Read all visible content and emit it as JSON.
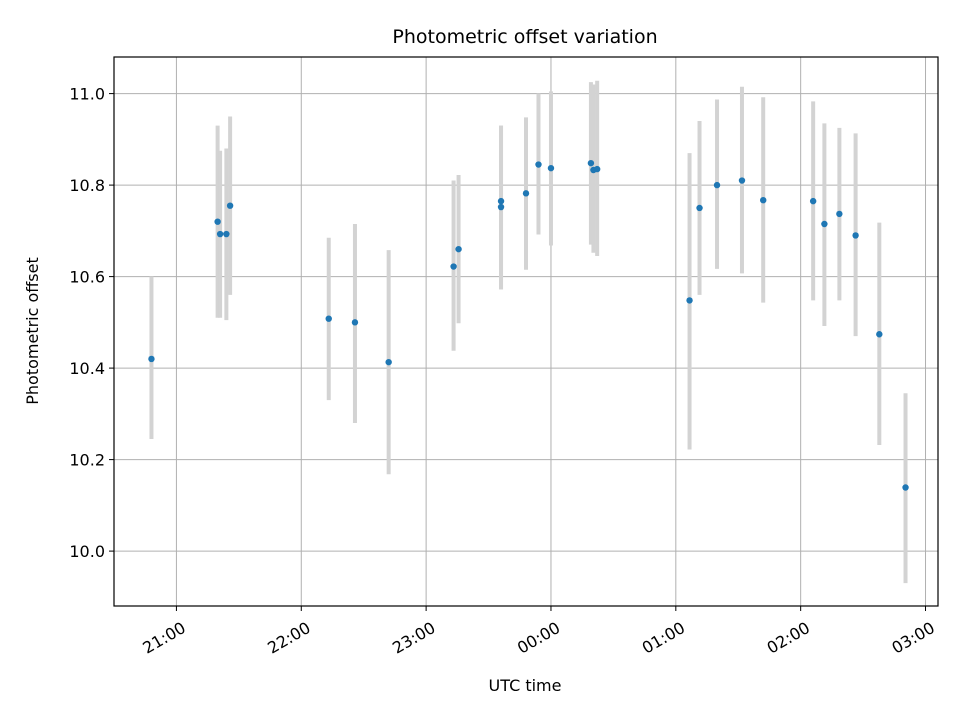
{
  "chart_data": {
    "type": "scatter",
    "title": "Photometric offset variation",
    "xlabel": "UTC time",
    "ylabel": "Photometric offset",
    "x_unit": "hours (UTC, values beyond 24 continue past midnight)",
    "xlim": [
      20.5,
      27.1
    ],
    "ylim": [
      9.88,
      11.08
    ],
    "xticks": [
      21,
      22,
      23,
      24,
      25,
      26,
      27
    ],
    "xtick_labels": [
      "21:00",
      "22:00",
      "23:00",
      "00:00",
      "01:00",
      "02:00",
      "03:00"
    ],
    "yticks": [
      10.0,
      10.2,
      10.4,
      10.6,
      10.8,
      11.0
    ],
    "ytick_labels": [
      "10.0",
      "10.2",
      "10.4",
      "10.6",
      "10.8",
      "11.0"
    ],
    "grid": true,
    "colors": {
      "points": "#1f77b4",
      "errorbars": "#d3d3d3",
      "grid": "#b0b0b0"
    },
    "points": [
      {
        "t": 20.8,
        "y": 10.42,
        "ylo": 10.245,
        "yhi": 10.6
      },
      {
        "t": 21.33,
        "y": 10.72,
        "ylo": 10.51,
        "yhi": 10.93
      },
      {
        "t": 21.35,
        "y": 10.693,
        "ylo": 10.51,
        "yhi": 10.875
      },
      {
        "t": 21.4,
        "y": 10.693,
        "ylo": 10.505,
        "yhi": 10.88
      },
      {
        "t": 21.43,
        "y": 10.755,
        "ylo": 10.56,
        "yhi": 10.95
      },
      {
        "t": 22.22,
        "y": 10.508,
        "ylo": 10.33,
        "yhi": 10.685
      },
      {
        "t": 22.43,
        "y": 10.5,
        "ylo": 10.28,
        "yhi": 10.715
      },
      {
        "t": 22.7,
        "y": 10.413,
        "ylo": 10.168,
        "yhi": 10.658
      },
      {
        "t": 23.22,
        "y": 10.622,
        "ylo": 10.438,
        "yhi": 10.81
      },
      {
        "t": 23.26,
        "y": 10.66,
        "ylo": 10.498,
        "yhi": 10.822
      },
      {
        "t": 23.6,
        "y": 10.752,
        "ylo": 10.572,
        "yhi": 10.93
      },
      {
        "t": 23.6,
        "y": 10.765,
        "ylo": 10.572,
        "yhi": 10.93
      },
      {
        "t": 23.8,
        "y": 10.782,
        "ylo": 10.615,
        "yhi": 10.948
      },
      {
        "t": 23.9,
        "y": 10.845,
        "ylo": 10.692,
        "yhi": 11.0
      },
      {
        "t": 24.0,
        "y": 10.837,
        "ylo": 10.668,
        "yhi": 11.005
      },
      {
        "t": 24.32,
        "y": 10.848,
        "ylo": 10.67,
        "yhi": 11.025
      },
      {
        "t": 24.34,
        "y": 10.833,
        "ylo": 10.652,
        "yhi": 11.02
      },
      {
        "t": 24.37,
        "y": 10.835,
        "ylo": 10.645,
        "yhi": 11.028
      },
      {
        "t": 25.11,
        "y": 10.548,
        "ylo": 10.222,
        "yhi": 10.87
      },
      {
        "t": 25.19,
        "y": 10.75,
        "ylo": 10.56,
        "yhi": 10.94
      },
      {
        "t": 25.33,
        "y": 10.8,
        "ylo": 10.617,
        "yhi": 10.987
      },
      {
        "t": 25.53,
        "y": 10.81,
        "ylo": 10.607,
        "yhi": 11.015
      },
      {
        "t": 25.7,
        "y": 10.767,
        "ylo": 10.543,
        "yhi": 10.992
      },
      {
        "t": 26.1,
        "y": 10.765,
        "ylo": 10.548,
        "yhi": 10.983
      },
      {
        "t": 26.19,
        "y": 10.715,
        "ylo": 10.492,
        "yhi": 10.935
      },
      {
        "t": 26.31,
        "y": 10.737,
        "ylo": 10.548,
        "yhi": 10.925
      },
      {
        "t": 26.44,
        "y": 10.69,
        "ylo": 10.47,
        "yhi": 10.913
      },
      {
        "t": 26.63,
        "y": 10.474,
        "ylo": 10.232,
        "yhi": 10.718
      },
      {
        "t": 26.84,
        "y": 10.139,
        "ylo": 9.93,
        "yhi": 10.345
      }
    ]
  }
}
